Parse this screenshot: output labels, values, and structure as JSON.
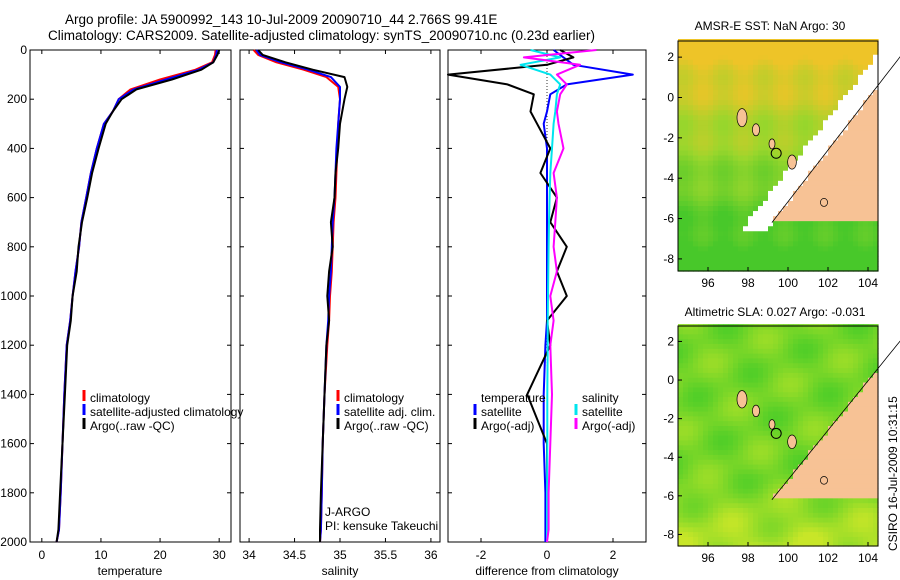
{
  "figure": {
    "title_line1": "Argo profile: JA 5900992_143 10-Jul-2009 20090710_44 2.766S 99.41E",
    "title_line2": "Climatology: CARS2009. Satellite-adjusted climatology: synTS_20090710.nc (0.23d earlier)",
    "stamp": "CSIRO 16-Jul-2009 10:31:15",
    "colors": {
      "climatology": "#ff0000",
      "satellite": "#0000ff",
      "argo": "#000000",
      "sal_satellite": "#00e5ee",
      "sal_argo": "#ff00ff",
      "land": "#f7c295"
    }
  },
  "chart_data": [
    {
      "type": "line",
      "id": "temperature",
      "xlabel": "temperature",
      "ylabel": "",
      "xlim": [
        -2,
        32
      ],
      "ylim": [
        2000,
        0
      ],
      "xticks": [
        0,
        10,
        20,
        30
      ],
      "yticks": [
        0,
        200,
        400,
        600,
        800,
        1000,
        1200,
        1400,
        1600,
        1800,
        2000
      ],
      "legend": [
        "climatology",
        "satellite-adjusted climatology",
        "Argo(..raw -QC)"
      ],
      "series": [
        {
          "name": "climatology",
          "color": "#ff0000",
          "x": [
            29.4,
            29.3,
            28.8,
            26,
            20,
            15,
            13,
            12,
            10.5,
            9.3,
            8.3,
            7.5,
            6.7,
            6.3,
            5.7,
            5.2,
            4.8,
            4.2,
            3.8,
            3.5,
            3.2,
            2.9,
            2.5
          ],
          "y": [
            0,
            20,
            50,
            80,
            120,
            160,
            200,
            250,
            300,
            400,
            500,
            600,
            700,
            800,
            900,
            1000,
            1100,
            1200,
            1400,
            1600,
            1800,
            1950,
            2000
          ]
        },
        {
          "name": "satellite-adjusted climatology",
          "color": "#0000ff",
          "x": [
            29.6,
            29.5,
            29.0,
            26.5,
            21,
            15.5,
            13,
            12,
            10.5,
            9.3,
            8.3,
            7.5,
            6.7,
            6.3,
            5.7,
            5.2,
            4.8,
            4.2,
            3.8,
            3.5,
            3.2,
            2.9,
            2.5
          ],
          "y": [
            0,
            20,
            50,
            80,
            120,
            160,
            200,
            250,
            300,
            400,
            500,
            600,
            700,
            800,
            900,
            1000,
            1100,
            1200,
            1400,
            1600,
            1800,
            1950,
            2000
          ]
        },
        {
          "name": "Argo(..raw -QC)",
          "color": "#000000",
          "x": [
            30.0,
            29.7,
            29.0,
            27,
            22,
            16,
            13.5,
            12,
            10.8,
            9.6,
            8.5,
            7.7,
            6.8,
            6.2,
            5.9,
            5.2,
            4.9,
            4.3,
            3.9,
            3.5,
            3.1,
            2.8,
            2.5
          ],
          "y": [
            0,
            20,
            50,
            80,
            120,
            160,
            200,
            250,
            300,
            400,
            500,
            600,
            700,
            800,
            900,
            1000,
            1100,
            1200,
            1400,
            1600,
            1800,
            1950,
            2000
          ]
        }
      ],
      "annotations": []
    },
    {
      "type": "line",
      "id": "salinity",
      "xlabel": "salinity",
      "xlim": [
        33.9,
        36.1
      ],
      "ylim": [
        2000,
        0
      ],
      "xticks": [
        34,
        34.5,
        35,
        35.5,
        36
      ],
      "legend": [
        "climatology",
        "satellite adj. clim.",
        "Argo(..raw -QC)"
      ],
      "series": [
        {
          "name": "climatology",
          "color": "#ff0000",
          "x": [
            34.05,
            34.1,
            34.3,
            34.6,
            34.85,
            34.98,
            35.0,
            34.98,
            34.97,
            34.96,
            34.95,
            34.93,
            34.92,
            34.91,
            34.89,
            34.88,
            34.86,
            34.83,
            34.81,
            34.8,
            34.79,
            34.78
          ],
          "y": [
            0,
            20,
            50,
            80,
            110,
            150,
            200,
            300,
            400,
            500,
            600,
            700,
            800,
            900,
            1000,
            1100,
            1200,
            1400,
            1600,
            1800,
            1950,
            2000
          ]
        },
        {
          "name": "satellite adj. clim.",
          "color": "#0000ff",
          "x": [
            34.08,
            34.12,
            34.35,
            34.65,
            34.9,
            35.0,
            35.0,
            34.98,
            34.96,
            34.95,
            34.94,
            34.92,
            34.91,
            34.9,
            34.88,
            34.87,
            34.85,
            34.83,
            34.81,
            34.8,
            34.79,
            34.78
          ],
          "y": [
            0,
            20,
            50,
            80,
            110,
            150,
            200,
            300,
            400,
            500,
            600,
            700,
            800,
            900,
            1000,
            1100,
            1200,
            1400,
            1600,
            1800,
            1950,
            2000
          ]
        },
        {
          "name": "Argo(..raw -QC)",
          "color": "#000000",
          "x": [
            34.1,
            34.15,
            34.4,
            34.7,
            35.05,
            35.08,
            35.05,
            35.0,
            34.98,
            34.95,
            34.94,
            34.9,
            34.92,
            34.88,
            34.86,
            34.88,
            34.85,
            34.83,
            34.81,
            34.79,
            34.78,
            34.78
          ],
          "y": [
            0,
            20,
            50,
            80,
            110,
            150,
            200,
            300,
            400,
            500,
            600,
            700,
            800,
            900,
            1000,
            1100,
            1200,
            1400,
            1600,
            1800,
            1950,
            2000
          ]
        }
      ],
      "annotations": [
        "J-ARGO",
        "PI: kensuke Takeuchi"
      ]
    },
    {
      "type": "line",
      "id": "difference",
      "xlabel": "difference from climatology",
      "xlim": [
        -3,
        3
      ],
      "ylim": [
        2000,
        0
      ],
      "xticks": [
        -2,
        0,
        2
      ],
      "legend": [
        "temperature",
        "satellite",
        "Argo(-adj)",
        "salinity",
        "satellite",
        "Argo(-adj)"
      ],
      "series": [
        {
          "name": "temperature satellite",
          "color": "#0000ff",
          "x": [
            0.2,
            0.5,
            0.8,
            2.6,
            0.6,
            0.1,
            0,
            -0.1,
            0,
            0,
            0,
            0,
            0,
            0,
            0,
            0,
            -0.05,
            -0.1,
            -0.1,
            -0.05,
            -0.05,
            -0.05
          ],
          "y": [
            0,
            30,
            60,
            100,
            140,
            180,
            250,
            300,
            400,
            500,
            600,
            700,
            800,
            900,
            1000,
            1100,
            1200,
            1400,
            1600,
            1800,
            1950,
            2000
          ]
        },
        {
          "name": "temperature Argo(-adj)",
          "color": "#000000",
          "x": [
            0.4,
            0.8,
            0,
            -3,
            -1.2,
            -0.4,
            -0.5,
            -0.3,
            0.1,
            -0.2,
            0.3,
            0.1,
            0.6,
            0.3,
            0.6,
            0,
            0.1,
            -0.6,
            0,
            0,
            0,
            0
          ],
          "y": [
            0,
            30,
            60,
            100,
            140,
            180,
            250,
            300,
            400,
            500,
            600,
            700,
            800,
            900,
            1000,
            1100,
            1200,
            1400,
            1600,
            1800,
            1950,
            2000
          ]
        },
        {
          "name": "salinity satellite",
          "color": "#00e5ee",
          "x": [
            -0.5,
            0.4,
            -0.8,
            0.1,
            0.4,
            0.3,
            0.25,
            0.2,
            0.15,
            0.1,
            0.08,
            0.06,
            0.05,
            0.04,
            0.03,
            0.02,
            0.02,
            0.01,
            0.01,
            0,
            0,
            0
          ],
          "y": [
            0,
            30,
            60,
            100,
            140,
            180,
            250,
            300,
            400,
            500,
            600,
            700,
            800,
            900,
            1000,
            1100,
            1200,
            1400,
            1600,
            1800,
            1950,
            2000
          ]
        },
        {
          "name": "salinity Argo(-adj)",
          "color": "#ff00ff",
          "x": [
            1.5,
            -0.7,
            1.0,
            0.3,
            0.6,
            0.4,
            0.3,
            0.35,
            0.5,
            0.2,
            0.3,
            0.25,
            0.2,
            0.3,
            0.1,
            0.2,
            0.1,
            0.15,
            0.1,
            0.05,
            0.05,
            0
          ],
          "y": [
            0,
            30,
            60,
            100,
            140,
            180,
            250,
            300,
            400,
            500,
            600,
            700,
            800,
            900,
            1000,
            1100,
            1200,
            1400,
            1600,
            1800,
            1950,
            2000
          ]
        }
      ],
      "annotations": []
    }
  ],
  "maps": [
    {
      "id": "sst",
      "title": "AMSR-E SST: NaN Argo: 30",
      "xlim": [
        94.5,
        104.5
      ],
      "ylim": [
        -8.6,
        2.8
      ],
      "xticks": [
        96,
        98,
        100,
        102,
        104
      ],
      "yticks": [
        2,
        0,
        -2,
        -4,
        -6,
        -8
      ],
      "field": "sst",
      "profile": {
        "lon": 99.41,
        "lat": -2.766
      }
    },
    {
      "id": "sla",
      "title": "Altimetric SLA: 0.027 Argo: -0.031",
      "xlim": [
        94.5,
        104.5
      ],
      "ylim": [
        -8.6,
        2.8
      ],
      "xticks": [
        96,
        98,
        100,
        102,
        104
      ],
      "yticks": [
        2,
        0,
        -2,
        -4,
        -6,
        -8
      ],
      "field": "sla",
      "profile": {
        "lon": 99.41,
        "lat": -2.766
      }
    }
  ]
}
